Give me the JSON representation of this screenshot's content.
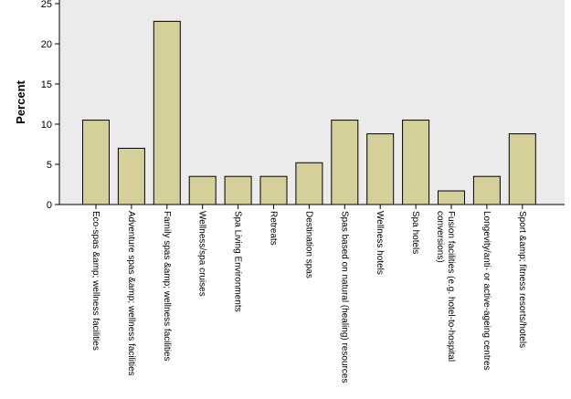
{
  "chart_data": {
    "type": "bar",
    "title": "",
    "xlabel": "",
    "ylabel": "Percent",
    "ylim": [
      0,
      25
    ],
    "yticks": [
      0,
      5,
      10,
      15,
      20,
      25
    ],
    "grid": false,
    "colors": {
      "plot_bg": "#ebebeb",
      "bar_fill": "#d5d09a",
      "bar_stroke": "#000000"
    },
    "categories": [
      [
        "Eco-spas &amp; wellness facilities"
      ],
      [
        "Adventure spas &amp; wellness facilities"
      ],
      [
        "Family spas &amp; wellness facilities"
      ],
      [
        "Wellness/spa cruises"
      ],
      [
        "Spa Living Environments"
      ],
      [
        "Retreats"
      ],
      [
        "Destination spas"
      ],
      [
        "Spas based on natural (healing) resources"
      ],
      [
        "Wellness hotels"
      ],
      [
        "Spa hotels"
      ],
      [
        "Fusion facilities (e.g. hotel-to-hospital",
        "conversions)"
      ],
      [
        "Longevity/anti- or active-ageing centres"
      ],
      [
        "Sport &amp; fitness resorts/hotels"
      ]
    ],
    "values": [
      10.5,
      7.0,
      22.8,
      3.5,
      3.5,
      3.5,
      5.2,
      10.5,
      8.8,
      10.5,
      1.7,
      3.5,
      8.8
    ]
  }
}
